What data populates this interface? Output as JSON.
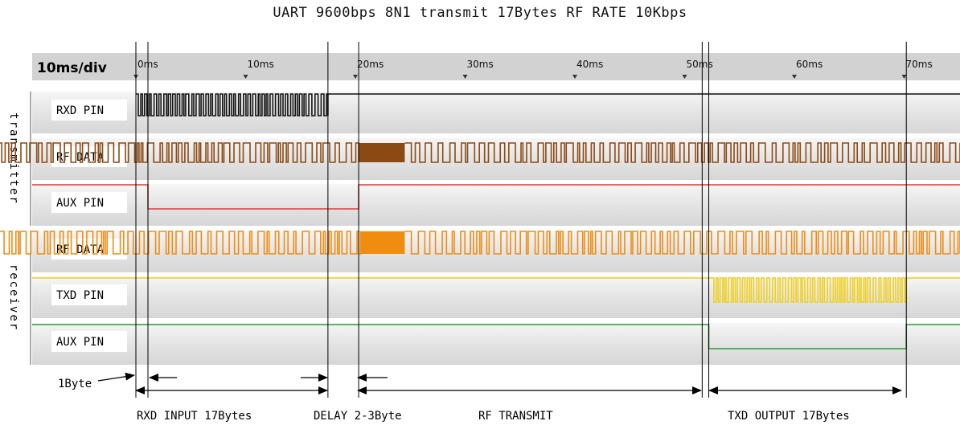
{
  "title": "UART 9600bps 8N1 transmit 17Bytes  RF RATE 10Kbps",
  "scale_label": "10ms/div",
  "time_ticks": [
    "0ms",
    "10ms",
    "20ms",
    "30ms",
    "40ms",
    "50ms",
    "60ms",
    "70ms"
  ],
  "groups": [
    {
      "label": "transmitter",
      "rows": [
        {
          "label": "RXD PIN",
          "color": "#111111"
        },
        {
          "label": "RF DATA",
          "color": "#8b4a14"
        },
        {
          "label": "AUX PIN",
          "color": "#e03c3c"
        }
      ]
    },
    {
      "label": "receiver",
      "rows": [
        {
          "label": "RF DATA",
          "color": "#f08c10"
        },
        {
          "label": "TXD PIN",
          "color": "#f0d020"
        },
        {
          "label": "AUX PIN",
          "color": "#2e9a3a"
        }
      ]
    }
  ],
  "annotations": {
    "byte_label": "1Byte",
    "rxd_input": "RXD INPUT 17Bytes",
    "delay": "DELAY 2-3Byte",
    "rf_transmit": "RF TRANSMIT",
    "txd_output": "TXD OUTPUT 17Bytes"
  }
}
